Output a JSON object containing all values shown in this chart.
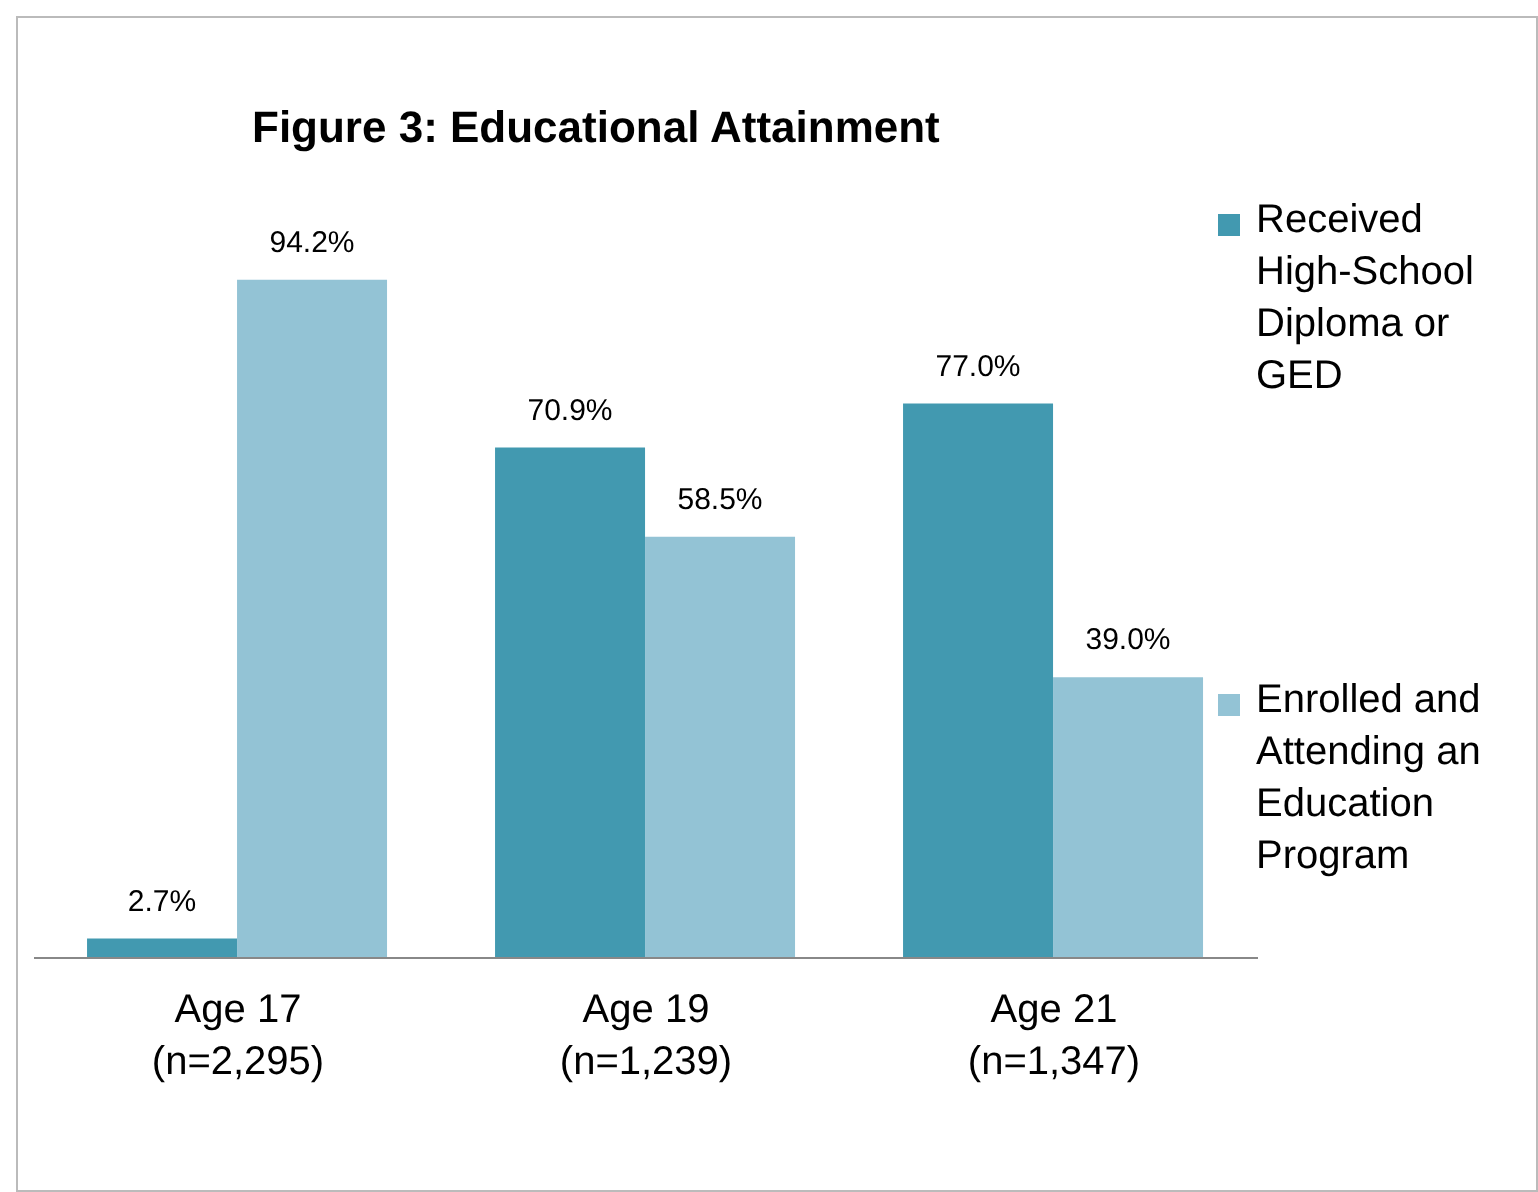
{
  "chart_data": {
    "type": "bar",
    "title": "Figure 3: Educational Attainment",
    "categories": [
      "Age 17 (n=2,295)",
      "Age 19 (n=1,239)",
      "Age 21 (n=1,347)"
    ],
    "series": [
      {
        "name": "Received High-School Diploma or GED",
        "color": "#4299b0",
        "values": [
          2.7,
          70.9,
          77.0
        ],
        "value_labels": [
          "2.7%",
          "70.9%",
          "77.0%"
        ]
      },
      {
        "name": "Enrolled and Attending an Education Program",
        "color": "#93c3d5",
        "values": [
          94.2,
          58.5,
          39.0
        ],
        "value_labels": [
          "94.2%",
          "58.5%",
          "39.0%"
        ]
      }
    ],
    "legend": "right",
    "grid": false
  }
}
